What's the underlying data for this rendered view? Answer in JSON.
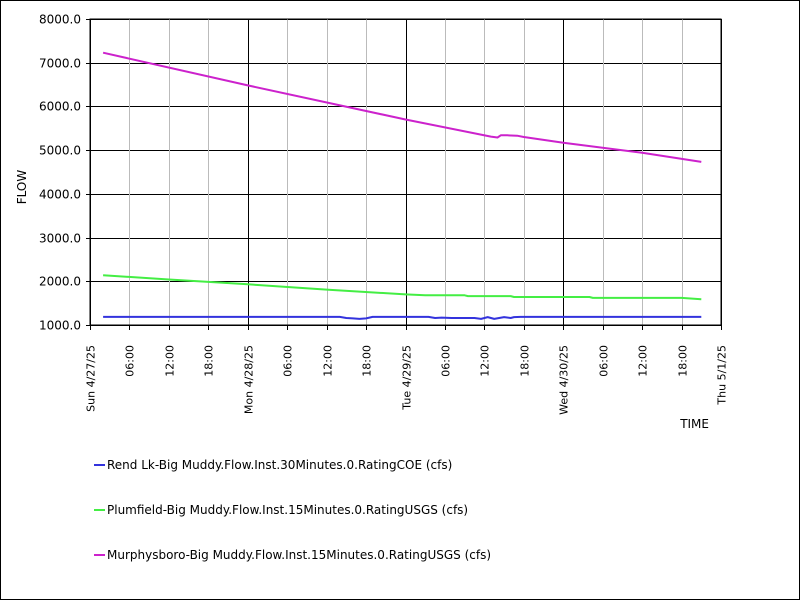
{
  "chart_data": {
    "type": "line",
    "title": "",
    "xlabel": "TIME",
    "ylabel": "FLOW",
    "ylim": [
      1000,
      8000
    ],
    "xlim": [
      "2025-04-27T00:00",
      "2025-05-01T00:00"
    ],
    "grid": true,
    "legend_position": "bottom",
    "y_ticks": [
      "1000.0",
      "2000.0",
      "3000.0",
      "4000.0",
      "5000.0",
      "6000.0",
      "7000.0",
      "8000.0"
    ],
    "x_ticks": [
      {
        "t": "2025-04-27T00:00",
        "label": "Sun 4/27/25",
        "major": true
      },
      {
        "t": "2025-04-27T06:00",
        "label": "06:00",
        "major": false
      },
      {
        "t": "2025-04-27T12:00",
        "label": "12:00",
        "major": false
      },
      {
        "t": "2025-04-27T18:00",
        "label": "18:00",
        "major": false
      },
      {
        "t": "2025-04-28T00:00",
        "label": "Mon 4/28/25",
        "major": true
      },
      {
        "t": "2025-04-28T06:00",
        "label": "06:00",
        "major": false
      },
      {
        "t": "2025-04-28T12:00",
        "label": "12:00",
        "major": false
      },
      {
        "t": "2025-04-28T18:00",
        "label": "18:00",
        "major": false
      },
      {
        "t": "2025-04-29T00:00",
        "label": "Tue 4/29/25",
        "major": true
      },
      {
        "t": "2025-04-29T06:00",
        "label": "06:00",
        "major": false
      },
      {
        "t": "2025-04-29T12:00",
        "label": "12:00",
        "major": false
      },
      {
        "t": "2025-04-29T18:00",
        "label": "18:00",
        "major": false
      },
      {
        "t": "2025-04-30T00:00",
        "label": "Wed 4/30/25",
        "major": true
      },
      {
        "t": "2025-04-30T06:00",
        "label": "06:00",
        "major": false
      },
      {
        "t": "2025-04-30T12:00",
        "label": "12:00",
        "major": false
      },
      {
        "t": "2025-04-30T18:00",
        "label": "18:00",
        "major": false
      },
      {
        "t": "2025-05-01T00:00",
        "label": "Thu 5/1/25",
        "major": true
      }
    ],
    "series": [
      {
        "name": "Rend Lk-Big Muddy.Flow.Inst.30Minutes.0.RatingCOE (cfs)",
        "color": "#3333dd",
        "x": [
          "2025-04-27T02:00",
          "2025-04-28T14:00",
          "2025-04-28T15:00",
          "2025-04-28T16:00",
          "2025-04-28T17:00",
          "2025-04-28T18:00",
          "2025-04-28T19:00",
          "2025-04-29T03:30",
          "2025-04-29T04:30",
          "2025-04-29T05:30",
          "2025-04-29T07:00",
          "2025-04-29T10:30",
          "2025-04-29T11:30",
          "2025-04-29T12:30",
          "2025-04-29T13:30",
          "2025-04-29T15:00",
          "2025-04-29T16:00",
          "2025-04-29T16:30",
          "2025-04-29T17:30",
          "2025-04-30T00:00",
          "2025-04-30T21:00"
        ],
        "values": [
          1185,
          1185,
          1160,
          1150,
          1140,
          1150,
          1185,
          1185,
          1160,
          1170,
          1160,
          1160,
          1140,
          1180,
          1140,
          1180,
          1160,
          1180,
          1185,
          1185,
          1185
        ]
      },
      {
        "name": "Plumfield-Big Muddy.Flow.Inst.15Minutes.0.RatingUSGS (cfs)",
        "color": "#44ee44",
        "x": [
          "2025-04-27T02:00",
          "2025-04-27T12:00",
          "2025-04-28T00:00",
          "2025-04-28T12:00",
          "2025-04-29T00:00",
          "2025-04-29T03:00",
          "2025-04-29T09:00",
          "2025-04-29T09:30",
          "2025-04-29T16:00",
          "2025-04-29T16:30",
          "2025-04-30T04:00",
          "2025-04-30T04:30",
          "2025-04-30T18:00",
          "2025-04-30T21:00"
        ],
        "values": [
          2140,
          2040,
          1930,
          1810,
          1700,
          1680,
          1680,
          1660,
          1660,
          1640,
          1640,
          1620,
          1620,
          1590
        ]
      },
      {
        "name": "Murphysboro-Big Muddy.Flow.Inst.15Minutes.0.RatingUSGS (cfs)",
        "color": "#cc22cc",
        "x": [
          "2025-04-27T02:00",
          "2025-04-28T00:00",
          "2025-04-29T00:00",
          "2025-04-29T13:00",
          "2025-04-29T14:00",
          "2025-04-29T14:30",
          "2025-04-29T15:30",
          "2025-04-29T17:00",
          "2025-04-29T18:00",
          "2025-04-30T00:00",
          "2025-04-30T12:00",
          "2025-04-30T21:00"
        ],
        "values": [
          7230,
          6480,
          5700,
          5310,
          5290,
          5340,
          5340,
          5330,
          5300,
          5170,
          4940,
          4730
        ]
      }
    ]
  }
}
